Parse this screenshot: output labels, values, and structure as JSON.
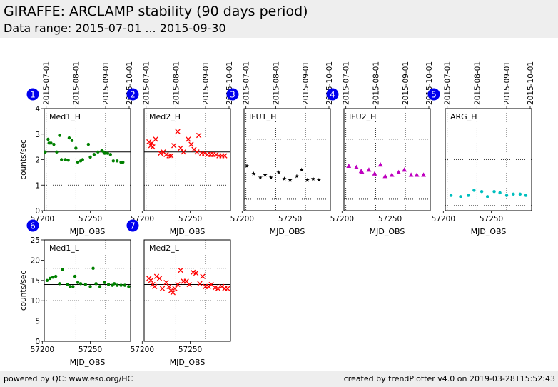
{
  "header": {
    "title": "GIRAFFE: ARCLAMP stability (90 days period)",
    "subtitle": "Data range: 2015-07-01 ... 2015-09-30"
  },
  "footer": {
    "left": "powered by QC: www.eso.org/HC",
    "right": "created by trendPlotter v4.0 on 2019-03-28T15:52:43"
  },
  "colors": {
    "green": "#008000",
    "red": "#ff0000",
    "black": "#000000",
    "magenta": "#bf00bf",
    "cyan": "#00bfbf",
    "badge": "#0000ee"
  },
  "chart_data": [
    {
      "type": "scatter",
      "badge": "1",
      "panel_label": "Med1_H",
      "marker": "dot",
      "color": "#008000",
      "xlabel": "MJD_OBS",
      "ylabel": "counts/sec",
      "xlim": [
        57202,
        57292
      ],
      "ylim": [
        0,
        4
      ],
      "xticks": [
        "57200",
        "57250"
      ],
      "yticks": [
        "0",
        "1",
        "2",
        "3",
        "4"
      ],
      "date_ticks": [
        "2015-07-01",
        "2015-08-01",
        "2015-09-01",
        "2015-10-01"
      ],
      "mean": 2.3,
      "limits": [
        1.0,
        3.2
      ],
      "x": [
        57203,
        57206,
        57207,
        57209,
        57212,
        57215,
        57218,
        57220,
        57224,
        57227,
        57228,
        57231,
        57235,
        57237,
        57240,
        57242,
        57248,
        57250,
        57254,
        57258,
        57262,
        57264,
        57265,
        57268,
        57271,
        57274,
        57278,
        57282,
        57284
      ],
      "y": [
        2.3,
        2.8,
        2.65,
        2.65,
        2.6,
        2.3,
        2.95,
        2.0,
        2.0,
        1.98,
        2.85,
        2.75,
        2.45,
        1.9,
        1.95,
        2.0,
        2.6,
        2.1,
        2.2,
        2.3,
        2.35,
        2.3,
        2.25,
        2.25,
        2.2,
        1.95,
        1.95,
        1.9,
        1.9
      ]
    },
    {
      "type": "scatter",
      "badge": "2",
      "panel_label": "Med2_H",
      "marker": "x",
      "color": "#ff0000",
      "xlabel": "MJD_OBS",
      "ylabel": "",
      "xlim": [
        57202,
        57292
      ],
      "ylim": [
        0,
        4
      ],
      "xticks": [
        "57200",
        "57250"
      ],
      "yticks": [],
      "date_ticks": [
        "2015-07-01",
        "2015-08-01",
        "2015-09-01",
        "2015-10-01"
      ],
      "mean": 2.3,
      "limits": [
        1.0,
        3.2
      ],
      "x": [
        57207,
        57209,
        57210,
        57211,
        57214,
        57219,
        57222,
        57225,
        57228,
        57230,
        57233,
        57237,
        57240,
        57243,
        57248,
        57251,
        57254,
        57257,
        57259,
        57262,
        57265,
        57268,
        57271,
        57274,
        57277,
        57280,
        57283,
        57286
      ],
      "y": [
        2.7,
        2.55,
        2.65,
        2.5,
        2.8,
        2.25,
        2.3,
        2.2,
        2.15,
        2.15,
        2.55,
        3.1,
        2.45,
        2.3,
        2.8,
        2.6,
        2.4,
        2.3,
        2.95,
        2.25,
        2.25,
        2.2,
        2.2,
        2.2,
        2.2,
        2.15,
        2.15,
        2.15
      ]
    },
    {
      "type": "scatter",
      "badge": "3",
      "panel_label": "IFU1_H",
      "marker": "star",
      "color": "#000000",
      "xlabel": "MJD_OBS",
      "ylabel": "",
      "xlim": [
        57202,
        57292
      ],
      "ylim": [
        0,
        4
      ],
      "xticks": [
        "57200",
        "57250"
      ],
      "yticks": [],
      "date_ticks": [
        "2015-07-01",
        "2015-08-01",
        "2015-09-01",
        "2015-10-01"
      ],
      "mean": null,
      "limits": [
        0.45,
        2.8
      ],
      "x": [
        57205,
        57212,
        57219,
        57224,
        57230,
        57238,
        57244,
        57250,
        57257,
        57262,
        57268,
        57274,
        57280
      ],
      "y": [
        1.75,
        1.45,
        1.3,
        1.4,
        1.3,
        1.5,
        1.25,
        1.2,
        1.35,
        1.6,
        1.2,
        1.25,
        1.2
      ]
    },
    {
      "type": "scatter",
      "badge": "4",
      "panel_label": "IFU2_H",
      "marker": "triangle",
      "color": "#bf00bf",
      "xlabel": "MJD_OBS",
      "ylabel": "",
      "xlim": [
        57202,
        57292
      ],
      "ylim": [
        0,
        4
      ],
      "xticks": [
        "57200",
        "57250"
      ],
      "yticks": [],
      "date_ticks": [
        "2015-07-01",
        "2015-08-01",
        "2015-09-01",
        "2015-10-01"
      ],
      "mean": null,
      "limits": [
        0.45,
        2.8
      ],
      "x": [
        57207,
        57215,
        57220,
        57221,
        57228,
        57234,
        57240,
        57245,
        57252,
        57259,
        57265,
        57272,
        57278,
        57285
      ],
      "y": [
        1.75,
        1.7,
        1.55,
        1.5,
        1.6,
        1.45,
        1.8,
        1.35,
        1.4,
        1.5,
        1.6,
        1.4,
        1.4,
        1.4
      ]
    },
    {
      "type": "scatter",
      "badge": "5",
      "panel_label": "ARG_H",
      "marker": "dot",
      "color": "#00bfbf",
      "xlabel": "MJD_OBS",
      "ylabel": "",
      "xlim": [
        57202,
        57292
      ],
      "ylim": [
        0,
        4
      ],
      "xticks": [
        "57200",
        "57250"
      ],
      "yticks": [],
      "date_ticks": [
        "2015-07-01",
        "2015-08-01",
        "2015-09-01",
        "2015-10-01"
      ],
      "mean": null,
      "limits": [
        0.2,
        2.0
      ],
      "x": [
        57208,
        57218,
        57226,
        57232,
        57240,
        57246,
        57253,
        57259,
        57266,
        57273,
        57280,
        57286
      ],
      "y": [
        0.6,
        0.55,
        0.6,
        0.8,
        0.75,
        0.55,
        0.75,
        0.7,
        0.6,
        0.65,
        0.65,
        0.6
      ]
    },
    {
      "type": "scatter",
      "badge": "6",
      "panel_label": "Med1_L",
      "marker": "dot",
      "color": "#008000",
      "xlabel": "MJD_OBS",
      "ylabel": "counts/sec",
      "xlim": [
        57202,
        57292
      ],
      "ylim": [
        0,
        25
      ],
      "xticks": [
        "57200",
        "57250"
      ],
      "yticks": [
        "0",
        "5",
        "10",
        "15",
        "20",
        "25"
      ],
      "date_ticks": [],
      "mean": 14.0,
      "limits": [
        10.0,
        18.0
      ],
      "x": [
        57205,
        57208,
        57211,
        57214,
        57218,
        57221,
        57226,
        57229,
        57232,
        57234,
        57237,
        57240,
        57245,
        57250,
        57253,
        57256,
        57260,
        57265,
        57269,
        57273,
        57275,
        57278,
        57282,
        57286,
        57290
      ],
      "y": [
        15.0,
        15.5,
        15.8,
        16.0,
        14.2,
        17.7,
        14.0,
        13.5,
        13.5,
        16.0,
        14.5,
        14.2,
        14.0,
        13.5,
        18.0,
        14.2,
        13.5,
        14.5,
        14.0,
        13.8,
        14.2,
        13.8,
        13.8,
        13.8,
        13.5
      ]
    },
    {
      "type": "scatter",
      "badge": "7",
      "panel_label": "Med2_L",
      "marker": "x",
      "color": "#ff0000",
      "xlabel": "MJD_OBS",
      "ylabel": "",
      "xlim": [
        57202,
        57292
      ],
      "ylim": [
        0,
        25
      ],
      "xticks": [
        "57200",
        "57250"
      ],
      "yticks": [],
      "date_ticks": [],
      "mean": 14.0,
      "limits": [
        10.0,
        18.0
      ],
      "x": [
        57207,
        57209,
        57211,
        57213,
        57215,
        57218,
        57221,
        57225,
        57228,
        57230,
        57232,
        57234,
        57237,
        57240,
        57243,
        57246,
        57249,
        57253,
        57256,
        57260,
        57263,
        57266,
        57269,
        57272,
        57276,
        57279,
        57283,
        57286,
        57289
      ],
      "y": [
        15.5,
        15.0,
        14.0,
        13.5,
        16.0,
        15.5,
        13.0,
        14.5,
        13.5,
        12.5,
        12.0,
        13.0,
        14.0,
        17.5,
        14.8,
        14.8,
        14.0,
        17.0,
        16.8,
        14.2,
        16.0,
        13.5,
        13.5,
        14.0,
        13.2,
        13.0,
        13.5,
        13.0,
        13.0
      ]
    }
  ]
}
